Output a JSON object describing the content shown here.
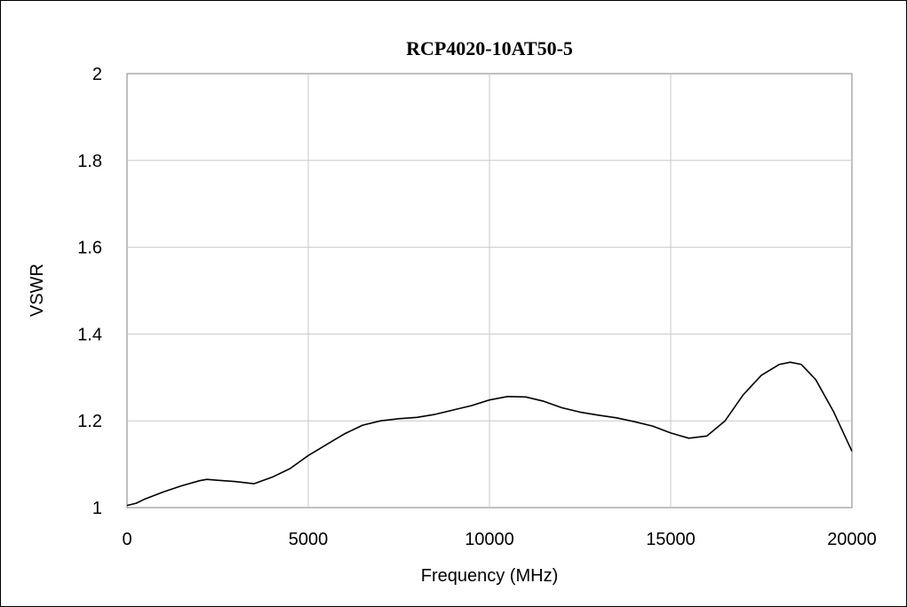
{
  "chart_data": {
    "type": "line",
    "title": "RCP4020-10AT50-5",
    "xlabel": "Frequency (MHz)",
    "ylabel": "VSWR",
    "xlim": [
      0,
      20000
    ],
    "ylim": [
      1,
      2
    ],
    "xticks": [
      "0",
      "5000",
      "10000",
      "15000",
      "20000"
    ],
    "yticks": [
      "1",
      "1.2",
      "1.4",
      "1.6",
      "1.8",
      "2"
    ],
    "grid": true,
    "series": [
      {
        "color": "#000000",
        "x": [
          0,
          250,
          500,
          1000,
          1500,
          2000,
          2200,
          2500,
          3000,
          3500,
          4000,
          4500,
          5000,
          5500,
          6000,
          6500,
          7000,
          7500,
          8000,
          8500,
          9000,
          9500,
          10000,
          10500,
          11000,
          11500,
          12000,
          12500,
          13000,
          13500,
          14000,
          14500,
          15000,
          15500,
          16000,
          16500,
          17000,
          17500,
          18000,
          18300,
          18600,
          19000,
          19500,
          20000
        ],
        "y": [
          1.005,
          1.01,
          1.02,
          1.036,
          1.05,
          1.062,
          1.065,
          1.063,
          1.06,
          1.055,
          1.07,
          1.09,
          1.12,
          1.145,
          1.17,
          1.19,
          1.2,
          1.205,
          1.208,
          1.215,
          1.225,
          1.235,
          1.248,
          1.256,
          1.255,
          1.245,
          1.23,
          1.22,
          1.213,
          1.207,
          1.198,
          1.188,
          1.172,
          1.16,
          1.165,
          1.2,
          1.26,
          1.305,
          1.33,
          1.335,
          1.33,
          1.295,
          1.22,
          1.13
        ]
      }
    ]
  }
}
